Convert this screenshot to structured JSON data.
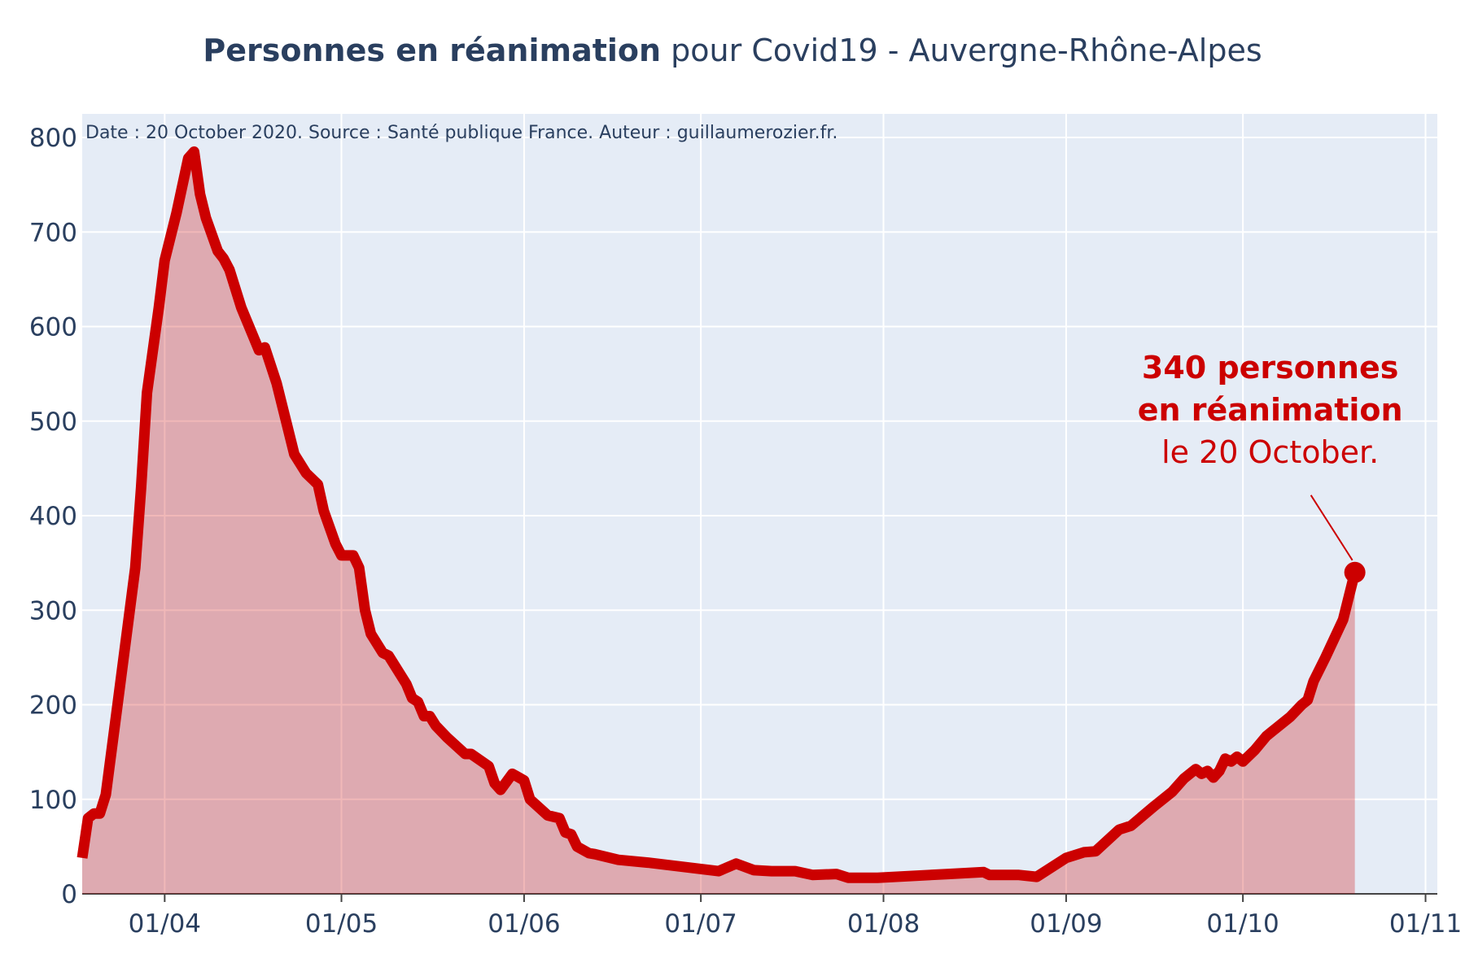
{
  "chart_data": {
    "type": "area",
    "title_bold": "Personnes en réanimation",
    "title": "pour Covid19 - Auvergne-Rhône-Alpes",
    "note": "Date : 20 October 2020. Source : Santé publique France. Auteur : guillaumerozier.fr.",
    "annotation": [
      "340 personnes",
      "en réanimation",
      "le 20 October."
    ],
    "x": [
      "18/03",
      "19/03",
      "20/03",
      "21/03",
      "22/03",
      "24/03",
      "27/03",
      "28/03",
      "29/03",
      "31/03",
      "01/04",
      "03/04",
      "05/04",
      "06/04",
      "07/04",
      "08/04",
      "10/04",
      "11/04",
      "12/04",
      "14/04",
      "17/04",
      "18/04",
      "20/04",
      "23/04",
      "25/04",
      "27/04",
      "28/04",
      "30/04",
      "01/05",
      "03/05",
      "04/05",
      "05/05",
      "06/05",
      "08/05",
      "09/05",
      "12/05",
      "13/05",
      "14/05",
      "15/05",
      "16/05",
      "17/05",
      "19/05",
      "22/05",
      "23/05",
      "26/05",
      "27/05",
      "28/05",
      "30/05",
      "01/06",
      "02/06",
      "05/06",
      "07/06",
      "08/06",
      "09/06",
      "10/06",
      "12/06",
      "13/06",
      "17/06",
      "22/06",
      "04/07",
      "07/07",
      "10/07",
      "13/07",
      "17/07",
      "20/07",
      "24/07",
      "26/07",
      "31/07",
      "12/08",
      "18/08",
      "19/08",
      "24/08",
      "27/08",
      "01/09",
      "04/09",
      "06/09",
      "10/09",
      "12/09",
      "16/09",
      "19/09",
      "21/09",
      "23/09",
      "24/09",
      "25/09",
      "26/09",
      "27/09",
      "28/09",
      "29/09",
      "30/09",
      "01/10",
      "03/10",
      "05/10",
      "06/10",
      "09/10",
      "11/10",
      "12/10",
      "13/10",
      "15/10",
      "18/10",
      "20/10"
    ],
    "series": [
      {
        "name": "Personnes en réanimation",
        "color": "#cc0000",
        "fill": "rgba(204,0,0,0.28)",
        "values": [
          38,
          80,
          85,
          85,
          105,
          200,
          345,
          430,
          530,
          620,
          670,
          720,
          778,
          785,
          740,
          715,
          680,
          672,
          660,
          620,
          575,
          578,
          540,
          465,
          445,
          433,
          405,
          370,
          358,
          358,
          345,
          300,
          275,
          255,
          252,
          222,
          207,
          203,
          188,
          188,
          178,
          165,
          148,
          148,
          135,
          117,
          110,
          127,
          120,
          100,
          83,
          80,
          65,
          63,
          50,
          43,
          42,
          36,
          33,
          24,
          32,
          25,
          24,
          24,
          20,
          21,
          17,
          17,
          21,
          23,
          20,
          20,
          18,
          38,
          44,
          45,
          68,
          72,
          93,
          108,
          122,
          132,
          127,
          130,
          123,
          130,
          143,
          140,
          145,
          140,
          152,
          167,
          172,
          187,
          200,
          205,
          225,
          250,
          290,
          340
        ]
      }
    ],
    "xlim": [
      "18/03",
      "03/11"
    ],
    "xticks": [
      "01/04",
      "01/05",
      "01/06",
      "01/07",
      "01/08",
      "01/09",
      "01/10",
      "01/11"
    ],
    "ylim": [
      0,
      825
    ],
    "yticks": [
      0,
      100,
      200,
      300,
      400,
      500,
      600,
      700,
      800
    ],
    "grid": true
  }
}
